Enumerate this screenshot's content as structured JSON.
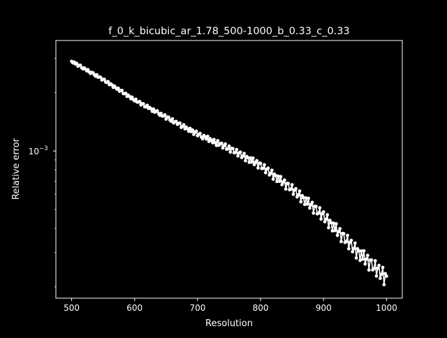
{
  "figure": {
    "background": "#000000",
    "foreground": "#ffffff"
  },
  "chart_data": {
    "type": "line",
    "title": "f_0_k_bicubic_ar_1.78_500-1000_b_0.33_c_0.33",
    "xlabel": "Resolution",
    "ylabel": "Relative error",
    "xscale": "linear",
    "yscale": "log",
    "xlim": [
      475,
      1025
    ],
    "ylim": [
      0.000175,
      0.0037
    ],
    "xticks": [
      500,
      600,
      700,
      800,
      900,
      1000
    ],
    "xtick_labels": [
      "500",
      "600",
      "700",
      "800",
      "900",
      "1000"
    ],
    "yticks": [
      0.001
    ],
    "ytick_labels": [
      "10",
      "−3"
    ],
    "grid": false,
    "legend": "none",
    "line_color": "#ffffff",
    "marker": "circle",
    "series": [
      {
        "x_start": 500,
        "x_end": 1000,
        "x_step": 2,
        "anchor_x": [
          500,
          550,
          600,
          650,
          700,
          750,
          800,
          850,
          900,
          950,
          1000
        ],
        "anchor_y": [
          0.00289,
          0.00233,
          0.00183,
          0.00149,
          0.00122,
          0.00103,
          0.00084,
          0.000635,
          0.00046,
          0.00031,
          0.00022
        ],
        "noise": [
          0.0,
          -0.004,
          0.004,
          -0.002,
          0.005,
          -0.006,
          0.002,
          0.006,
          -0.003,
          -0.005,
          0.004,
          0.001,
          -0.004,
          0.006,
          -0.002,
          -0.006,
          0.003,
          0.005,
          -0.001,
          -0.005,
          0.006,
          -0.003,
          0.002,
          0.004,
          -0.006,
          0.001,
          0.005,
          -0.004,
          -0.002,
          0.006,
          -0.005,
          0.003,
          0.002,
          -0.006,
          0.004,
          0.0,
          -0.003,
          0.005,
          -0.005,
          0.002,
          0.006,
          -0.004,
          -0.001,
          0.004,
          -0.006,
          0.003,
          0.001,
          -0.005,
          0.005,
          -0.002,
          -0.004,
          0.006,
          -0.003,
          0.0,
          0.005,
          -0.006,
          0.002,
          0.004,
          -0.005,
          -0.002,
          0.006,
          -0.003,
          0.003,
          0.001,
          -0.006,
          0.005,
          -0.004,
          0.002,
          0.006,
          -0.001,
          -0.005,
          0.004,
          -0.003,
          0.0,
          0.006,
          -0.006,
          0.003,
          0.005,
          -0.002,
          -0.004,
          0.006,
          -0.005,
          0.001,
          0.004,
          -0.003,
          0.002,
          0.005,
          -0.006,
          -0.001,
          0.006,
          -0.004,
          0.003,
          0.0,
          -0.005,
          0.005,
          -0.002,
          0.004,
          -0.006,
          0.002,
          0.006,
          -0.004,
          0.001,
          0.005,
          -0.003,
          -0.006,
          0.004,
          0.002,
          -0.002,
          0.006,
          -0.005,
          0.003,
          0.0,
          -0.004,
          0.005,
          -0.001,
          -0.006,
          0.006,
          -0.003,
          0.002,
          0.004,
          -0.005,
          0.001,
          0.006,
          -0.004,
          -0.002,
          0.005,
          -0.006,
          0.003,
          0.004,
          -0.003,
          -0.001,
          0.006,
          -0.005,
          0.002,
          0.005,
          -0.004,
          0.0,
          0.006,
          -0.006,
          0.003,
          0.002,
          -0.005,
          0.004,
          -0.002,
          0.006,
          -0.004,
          0.001,
          0.005,
          -0.006,
          0.003,
          0.004,
          -0.003,
          -0.001,
          0.006,
          -0.005,
          0.002,
          0.005,
          -0.004,
          0.0,
          0.006,
          -0.006,
          0.003,
          0.002,
          -0.005,
          0.004,
          -0.002,
          0.006,
          -0.004,
          0.001,
          0.005,
          -0.006,
          0.003,
          0.004,
          -0.003,
          -0.001,
          0.006,
          -0.005,
          0.002,
          0.005,
          -0.004,
          0.0,
          0.006,
          -0.006,
          0.003,
          0.002,
          -0.005,
          0.004,
          -0.002,
          0.006,
          -0.004,
          0.001,
          0.005,
          -0.006,
          0.003,
          0.004,
          -0.003,
          -0.001,
          0.006,
          -0.005,
          0.002,
          0.005,
          -0.004,
          0.0,
          0.006,
          -0.006,
          0.003,
          0.002,
          -0.005,
          0.004,
          -0.002,
          0.006,
          -0.004,
          0.001,
          0.005,
          -0.006,
          0.003,
          0.004,
          -0.003,
          -0.001,
          0.006,
          -0.005,
          0.002,
          0.005,
          -0.004,
          0.0,
          0.006,
          -0.006,
          0.003,
          0.002,
          -0.005,
          0.004,
          -0.002,
          0.006,
          -0.004,
          0.001,
          0.005,
          -0.006,
          0.003,
          0.004,
          -0.003,
          -0.001,
          0.006,
          -0.005,
          0.002,
          0.005,
          -0.004,
          0.0,
          0.006,
          -0.006,
          0.003,
          0.002
        ]
      }
    ]
  }
}
